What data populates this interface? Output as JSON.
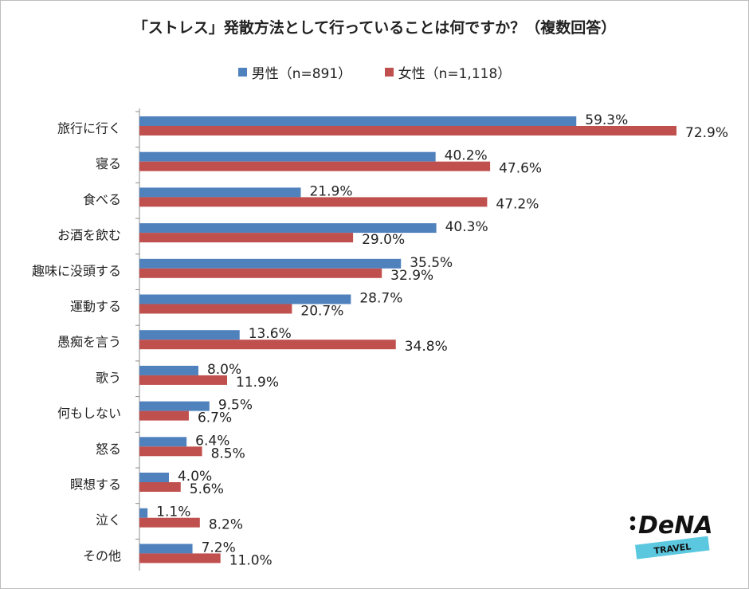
{
  "chart_data": {
    "type": "bar",
    "orientation": "horizontal",
    "title": "「ストレス」発散方法として行っていることは何ですか？（複数回答）",
    "categories": [
      "旅行に行く",
      "寝る",
      "食べる",
      "お酒を飲む",
      "趣味に没頭する",
      "運動する",
      "愚痴を言う",
      "歌う",
      "何もしない",
      "怒る",
      "瞑想する",
      "泣く",
      "その他"
    ],
    "series": [
      {
        "name": "男性（n=891）",
        "color": "#4f81bd",
        "values": [
          59.3,
          40.2,
          21.9,
          40.3,
          35.5,
          28.7,
          13.6,
          8.0,
          9.5,
          6.4,
          4.0,
          1.1,
          7.2
        ]
      },
      {
        "name": "女性（n=1,118）",
        "color": "#c0504d",
        "values": [
          72.9,
          47.6,
          47.2,
          29.0,
          32.9,
          20.7,
          34.8,
          11.9,
          6.7,
          8.5,
          5.6,
          8.2,
          11.0
        ]
      }
    ],
    "xlim": [
      0,
      80
    ],
    "value_suffix": "%",
    "grid": false,
    "legend_position": "top"
  },
  "logo": {
    "brand": "DeNA",
    "sub": "TRAVEL"
  }
}
